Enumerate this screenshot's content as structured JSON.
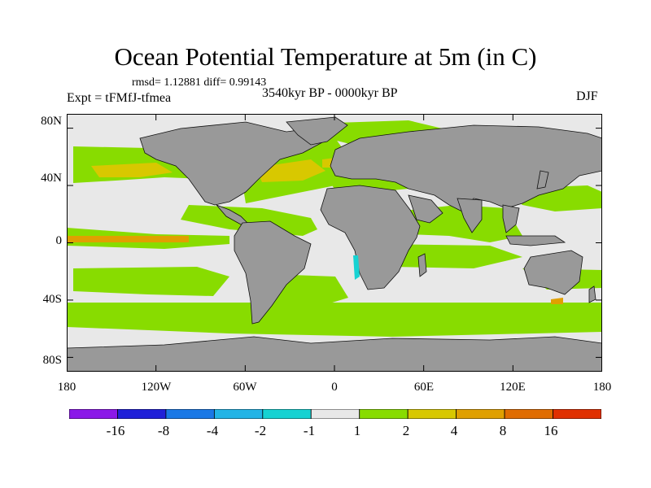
{
  "title": "Ocean Potential Temperature at 5m (in C)",
  "stats": "rmsd= 1.12881  diff= 0.99143",
  "expt": "Expt = tFMfJ-tfmea",
  "period": "3540kyr BP - 0000kyr BP",
  "season": "DJF",
  "map": {
    "x_range": [
      -180,
      180
    ],
    "y_range": [
      -90,
      90
    ],
    "xticks": [
      {
        "value": -180,
        "label": "180"
      },
      {
        "value": -120,
        "label": "120W"
      },
      {
        "value": -60,
        "label": "60W"
      },
      {
        "value": 0,
        "label": "0"
      },
      {
        "value": 60,
        "label": "60E"
      },
      {
        "value": 120,
        "label": "120E"
      },
      {
        "value": 180,
        "label": "180"
      }
    ],
    "yticks": [
      {
        "value": 80,
        "label": "80N"
      },
      {
        "value": 40,
        "label": "40N"
      },
      {
        "value": 0,
        "label": "0"
      },
      {
        "value": -40,
        "label": "40S"
      },
      {
        "value": -80,
        "label": "80S"
      }
    ]
  },
  "colorbar": {
    "colors": [
      "#8b18e8",
      "#2020d8",
      "#1a78e6",
      "#22b4e6",
      "#16d2d2",
      "#e8e8e8",
      "#88dc00",
      "#d8c800",
      "#e0a000",
      "#e06c00",
      "#e03000"
    ],
    "labels": [
      "-16",
      "-8",
      "-4",
      "-2",
      "-1",
      "1",
      "2",
      "4",
      "8",
      "16"
    ]
  },
  "colors": {
    "land": "#999999",
    "neutral": "#e8e8e8",
    "warm_low": "#88dc00",
    "warm_mid": "#d8c800",
    "warm_high": "#e0a000",
    "cool": "#16d2d2"
  }
}
